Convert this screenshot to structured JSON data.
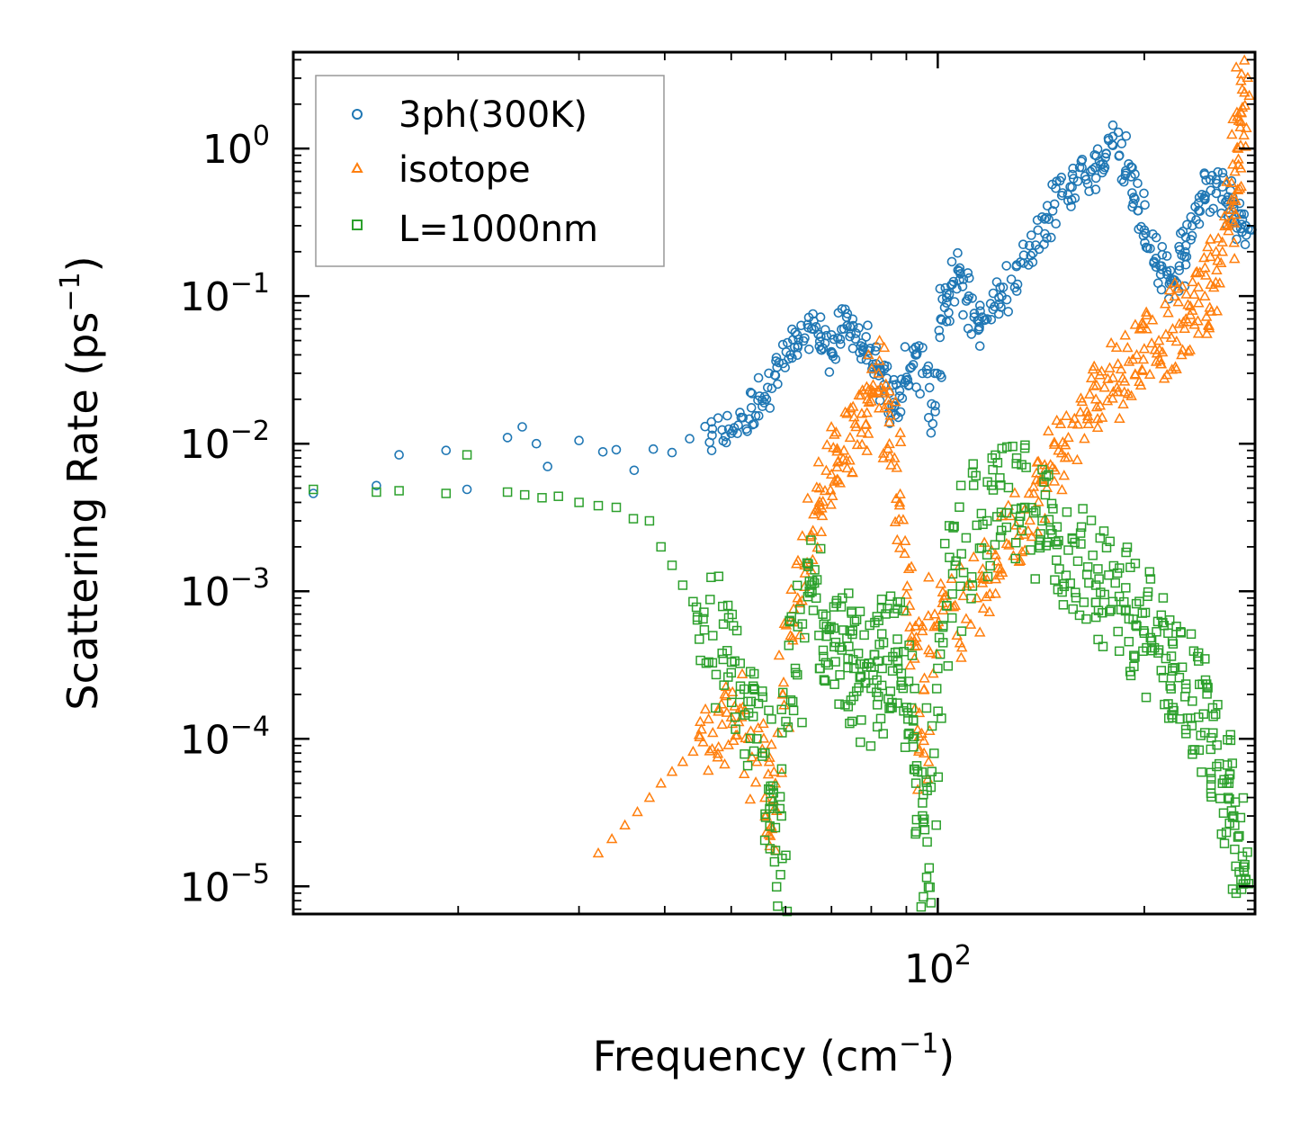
{
  "chart_data": {
    "type": "scatter",
    "xscale": "log",
    "yscale": "log",
    "xlabel": "Frequency (cm",
    "xlabel_sup": "−1",
    "xlabel_tail": ")",
    "ylabel": "Scattering Rate (ps",
    "ylabel_sup": "−1",
    "ylabel_tail": ")",
    "xlim": [
      11.5,
      290
    ],
    "ylim": [
      6.5e-06,
      4.5
    ],
    "x_ticks": [
      {
        "base": "10",
        "exp": "2",
        "value": 100
      }
    ],
    "y_ticks": [
      {
        "base": "10",
        "exp": "0",
        "value": 1
      },
      {
        "base": "10",
        "exp": "−1",
        "value": 0.1
      },
      {
        "base": "10",
        "exp": "−2",
        "value": 0.01
      },
      {
        "base": "10",
        "exp": "−3",
        "value": 0.001
      },
      {
        "base": "10",
        "exp": "−4",
        "value": 0.0001
      },
      {
        "base": "10",
        "exp": "−5",
        "value": 1e-05
      }
    ],
    "legend_position": "top-left",
    "series": [
      {
        "name": "3ph(300K)",
        "marker": "circle",
        "color": "#1f77b4",
        "points": [
          [
            12.3,
            0.0046
          ],
          [
            15.2,
            0.0052
          ],
          [
            16.4,
            0.0084
          ],
          [
            19.2,
            0.009
          ],
          [
            20.6,
            0.0049
          ],
          [
            23.6,
            0.011
          ],
          [
            24.8,
            0.013
          ],
          [
            26.0,
            0.01
          ],
          [
            27.0,
            0.007
          ],
          [
            30.0,
            0.0105
          ],
          [
            32.5,
            0.0088
          ],
          [
            34.0,
            0.0091
          ],
          [
            36.1,
            0.0066
          ],
          [
            38.5,
            0.0092
          ],
          [
            41.0,
            0.0087
          ],
          [
            43.5,
            0.0108
          ],
          [
            46.5,
            0.0102
          ],
          [
            48.5,
            0.0124
          ],
          [
            50.5,
            0.0128
          ],
          [
            52.0,
            0.015
          ],
          [
            53.5,
            0.0175
          ],
          [
            55.0,
            0.021
          ],
          [
            56.5,
            0.024
          ],
          [
            58.0,
            0.029
          ],
          [
            59.5,
            0.035
          ],
          [
            61.0,
            0.04
          ],
          [
            62.5,
            0.045
          ],
          [
            64.0,
            0.052
          ],
          [
            65.5,
            0.06
          ],
          [
            67.0,
            0.055
          ],
          [
            68.5,
            0.048
          ],
          [
            70.0,
            0.042
          ],
          [
            71.5,
            0.052
          ],
          [
            73.0,
            0.06
          ],
          [
            74.5,
            0.062
          ],
          [
            76.0,
            0.056
          ],
          [
            77.5,
            0.048
          ],
          [
            79.0,
            0.04
          ],
          [
            80.5,
            0.033
          ],
          [
            82.0,
            0.029
          ],
          [
            83.5,
            0.025
          ],
          [
            85.0,
            0.022
          ],
          [
            86.5,
            0.018
          ],
          [
            88.0,
            0.021
          ],
          [
            89.5,
            0.026
          ],
          [
            91.5,
            0.033
          ],
          [
            93.0,
            0.04
          ],
          [
            95.0,
            0.03
          ],
          [
            97.0,
            0.015
          ],
          [
            99.0,
            0.03
          ],
          [
            101,
            0.07
          ],
          [
            103,
            0.09
          ],
          [
            105,
            0.12
          ],
          [
            107,
            0.15
          ],
          [
            109,
            0.13
          ],
          [
            111,
            0.1
          ],
          [
            113,
            0.072
          ],
          [
            115,
            0.062
          ],
          [
            118,
            0.07
          ],
          [
            121,
            0.085
          ],
          [
            124,
            0.1
          ],
          [
            128,
            0.13
          ],
          [
            132,
            0.17
          ],
          [
            136,
            0.22
          ],
          [
            140,
            0.28
          ],
          [
            144,
            0.34
          ],
          [
            148,
            0.42
          ],
          [
            152,
            0.5
          ],
          [
            156,
            0.55
          ],
          [
            160,
            0.6
          ],
          [
            164,
            0.65
          ],
          [
            168,
            0.72
          ],
          [
            172,
            0.82
          ],
          [
            176,
            0.92
          ],
          [
            180,
            1.05
          ],
          [
            184,
            0.9
          ],
          [
            188,
            0.68
          ],
          [
            192,
            0.5
          ],
          [
            196,
            0.38
          ],
          [
            200,
            0.28
          ],
          [
            204,
            0.21
          ],
          [
            208,
            0.18
          ],
          [
            212,
            0.16
          ],
          [
            216,
            0.14
          ],
          [
            220,
            0.13
          ],
          [
            225,
            0.16
          ],
          [
            230,
            0.22
          ],
          [
            235,
            0.3
          ],
          [
            240,
            0.38
          ],
          [
            245,
            0.46
          ],
          [
            250,
            0.52
          ],
          [
            255,
            0.58
          ],
          [
            260,
            0.55
          ],
          [
            265,
            0.47
          ],
          [
            270,
            0.4
          ],
          [
            275,
            0.36
          ],
          [
            278,
            0.33
          ],
          [
            281,
            0.3
          ]
        ]
      },
      {
        "name": "isotope",
        "marker": "triangle",
        "color": "#ff7f0e",
        "points": [
          [
            32.0,
            1.68e-05
          ],
          [
            33.5,
            2.1e-05
          ],
          [
            35.0,
            2.6e-05
          ],
          [
            36.5,
            3.2e-05
          ],
          [
            38.0,
            4e-05
          ],
          [
            39.5,
            5e-05
          ],
          [
            41.0,
            6e-05
          ],
          [
            42.5,
            7e-05
          ],
          [
            44.0,
            8.2e-05
          ],
          [
            45.5,
            9.5e-05
          ],
          [
            47.0,
            0.00011
          ],
          [
            48.5,
            0.000125
          ],
          [
            50.0,
            0.00014
          ],
          [
            51.5,
            0.00016
          ],
          [
            53.0,
            0.0001
          ],
          [
            54.5,
            7e-05
          ],
          [
            56.0,
            4e-05
          ],
          [
            57.0,
            2.2e-05
          ],
          [
            58.0,
            5e-05
          ],
          [
            59.5,
            0.0002
          ],
          [
            61.0,
            0.0005
          ],
          [
            62.5,
            0.0009
          ],
          [
            64.0,
            0.0015
          ],
          [
            65.5,
            0.0024
          ],
          [
            67.0,
            0.0035
          ],
          [
            68.5,
            0.0048
          ],
          [
            70.0,
            0.0062
          ],
          [
            71.5,
            0.0075
          ],
          [
            73.0,
            0.009
          ],
          [
            74.5,
            0.011
          ],
          [
            76.0,
            0.013
          ],
          [
            77.5,
            0.016
          ],
          [
            79.0,
            0.02
          ],
          [
            80.5,
            0.025
          ],
          [
            82.0,
            0.03
          ],
          [
            83.5,
            0.022
          ],
          [
            85.0,
            0.014
          ],
          [
            86.5,
            0.008
          ],
          [
            88.0,
            0.004
          ],
          [
            89.5,
            0.0018
          ],
          [
            91.0,
            0.0008
          ],
          [
            92.5,
            0.00035
          ],
          [
            94.0,
            0.00015
          ],
          [
            95.5,
            8e-05
          ],
          [
            97.0,
            0.0004
          ],
          [
            99.0,
            0.0007
          ],
          [
            102,
            0.0009
          ],
          [
            106,
            0.0008
          ],
          [
            110,
            0.00065
          ],
          [
            114,
            0.0009
          ],
          [
            118,
            0.0012
          ],
          [
            122,
            0.0016
          ],
          [
            126,
            0.0021
          ],
          [
            130,
            0.0028
          ],
          [
            134,
            0.0036
          ],
          [
            138,
            0.0046
          ],
          [
            142,
            0.0058
          ],
          [
            146,
            0.0072
          ],
          [
            150,
            0.009
          ],
          [
            155,
            0.011
          ],
          [
            160,
            0.0135
          ],
          [
            165,
            0.0165
          ],
          [
            170,
            0.02
          ],
          [
            175,
            0.024
          ],
          [
            180,
            0.028
          ],
          [
            185,
            0.032
          ],
          [
            190,
            0.036
          ],
          [
            195,
            0.04
          ],
          [
            200,
            0.044
          ],
          [
            205,
            0.048
          ],
          [
            210,
            0.05
          ],
          [
            215,
            0.055
          ],
          [
            220,
            0.06
          ],
          [
            225,
            0.065
          ],
          [
            230,
            0.07
          ],
          [
            235,
            0.08
          ],
          [
            240,
            0.09
          ],
          [
            245,
            0.1
          ],
          [
            250,
            0.12
          ],
          [
            255,
            0.15
          ],
          [
            260,
            0.2
          ],
          [
            265,
            0.3
          ],
          [
            268,
            0.45
          ],
          [
            271,
            0.7
          ],
          [
            274,
            1.0
          ],
          [
            276,
            1.4
          ],
          [
            278,
            1.9
          ],
          [
            280,
            2.4
          ]
        ]
      },
      {
        "name": "L=1000nm",
        "marker": "square",
        "color": "#2ca02c",
        "points": [
          [
            12.3,
            0.0049
          ],
          [
            15.2,
            0.0047
          ],
          [
            16.4,
            0.0048
          ],
          [
            19.2,
            0.0046
          ],
          [
            20.6,
            0.0084
          ],
          [
            23.6,
            0.0047
          ],
          [
            25.0,
            0.0045
          ],
          [
            26.5,
            0.0043
          ],
          [
            28.0,
            0.0044
          ],
          [
            30.0,
            0.004
          ],
          [
            32.0,
            0.0038
          ],
          [
            34.0,
            0.0037
          ],
          [
            36.0,
            0.0031
          ],
          [
            38.0,
            0.003
          ],
          [
            39.5,
            0.002
          ],
          [
            41.0,
            0.0015
          ],
          [
            42.5,
            0.0011
          ],
          [
            44.0,
            0.00085
          ],
          [
            45.5,
            0.00065
          ],
          [
            47.0,
            0.0005
          ],
          [
            48.5,
            0.00038
          ],
          [
            50.0,
            0.00028
          ],
          [
            51.5,
            0.0002
          ],
          [
            53.0,
            0.00015
          ],
          [
            54.5,
            0.0001
          ],
          [
            56.0,
            8e-05
          ],
          [
            57.0,
            4.5e-05
          ],
          [
            58.0,
            2.5e-05
          ],
          [
            59.0,
            1.2e-05
          ],
          [
            60.5,
            0.00012
          ],
          [
            62.0,
            0.0003
          ],
          [
            63.5,
            0.0006
          ],
          [
            65.0,
            0.001
          ],
          [
            66.5,
            0.0009
          ],
          [
            68.0,
            0.0007
          ],
          [
            69.5,
            0.00055
          ],
          [
            71.0,
            0.00045
          ],
          [
            72.5,
            0.0004
          ],
          [
            74.0,
            0.00035
          ],
          [
            75.5,
            0.0003
          ],
          [
            77.0,
            0.00026
          ],
          [
            78.5,
            0.00024
          ],
          [
            80.0,
            0.00022
          ],
          [
            81.5,
            0.00025
          ],
          [
            83.0,
            0.0003
          ],
          [
            84.5,
            0.00034
          ],
          [
            86.0,
            0.00036
          ],
          [
            87.5,
            0.0003
          ],
          [
            89.0,
            0.00022
          ],
          [
            90.5,
            0.00015
          ],
          [
            92.0,
            0.0001
          ],
          [
            93.5,
            6e-05
          ],
          [
            95.0,
            3e-05
          ],
          [
            96.5,
            2e-05
          ],
          [
            98.0,
            6e-05
          ],
          [
            100,
            0.0003
          ],
          [
            103,
            0.0008
          ],
          [
            106,
            0.0015
          ],
          [
            110,
            0.0023
          ],
          [
            114,
            0.0028
          ],
          [
            118,
            0.003
          ],
          [
            122,
            0.0032
          ],
          [
            126,
            0.0034
          ],
          [
            130,
            0.0036
          ],
          [
            134,
            0.0037
          ],
          [
            138,
            0.0034
          ],
          [
            142,
            0.003
          ],
          [
            146,
            0.0026
          ],
          [
            150,
            0.0022
          ],
          [
            155,
            0.0019
          ],
          [
            160,
            0.0016
          ],
          [
            165,
            0.0013
          ],
          [
            170,
            0.0011
          ],
          [
            175,
            0.00095
          ],
          [
            180,
            0.00085
          ],
          [
            185,
            0.00075
          ],
          [
            190,
            0.00065
          ],
          [
            195,
            0.00058
          ],
          [
            200,
            0.00052
          ],
          [
            205,
            0.00046
          ],
          [
            210,
            0.0004
          ],
          [
            215,
            0.00035
          ],
          [
            220,
            0.0003
          ],
          [
            225,
            0.00026
          ],
          [
            230,
            0.00022
          ],
          [
            235,
            0.00018
          ],
          [
            240,
            0.00014
          ],
          [
            245,
            0.00011
          ],
          [
            250,
            8.5e-05
          ],
          [
            255,
            6.5e-05
          ],
          [
            260,
            5e-05
          ],
          [
            265,
            4e-05
          ],
          [
            270,
            3e-05
          ],
          [
            275,
            2.2e-05
          ],
          [
            278,
            1.6e-05
          ],
          [
            281,
            1.1e-05
          ]
        ]
      }
    ]
  }
}
